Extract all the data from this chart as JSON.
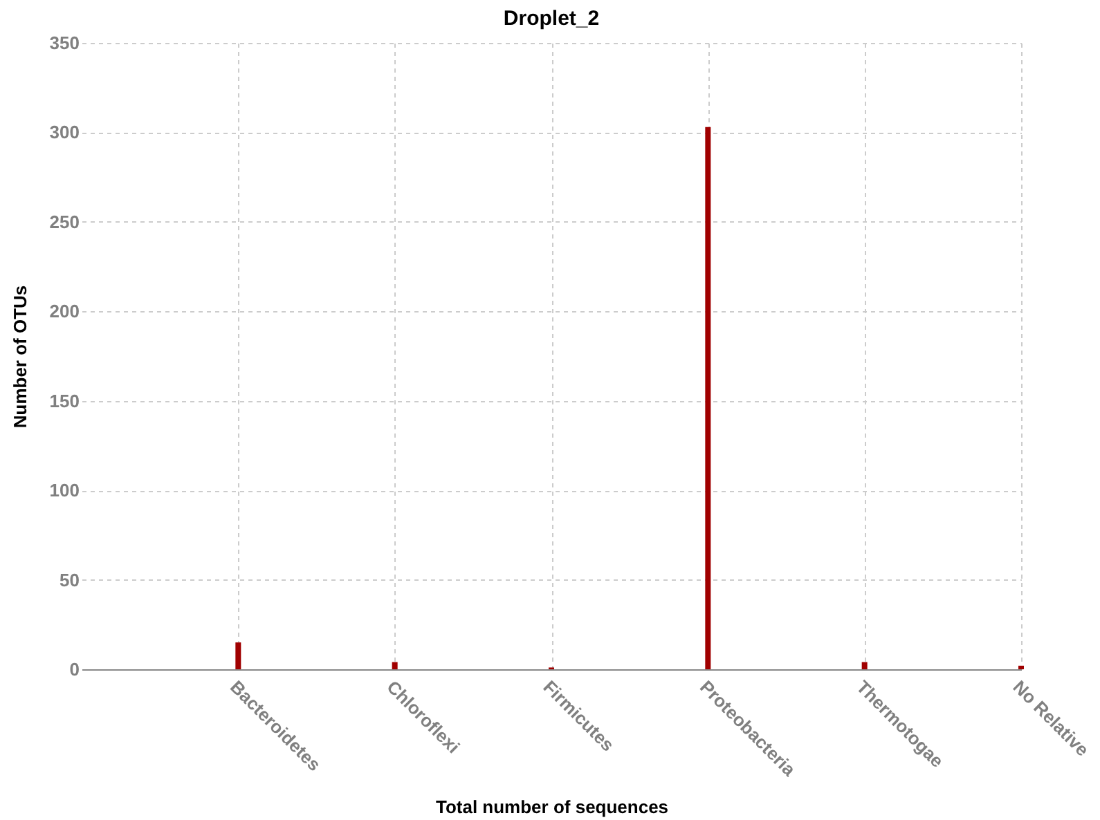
{
  "chart_data": {
    "type": "bar",
    "title": "Droplet_2",
    "xlabel": "Total number of sequences",
    "ylabel": "Number of OTUs",
    "categories": [
      "Bacteroidetes",
      "Chloroflexi",
      "Firmicutes",
      "Proteobacteria",
      "Thermotogae",
      "No Relative"
    ],
    "values": [
      15,
      4,
      1,
      303,
      4,
      2
    ],
    "color": "#a00000",
    "ylim": [
      0,
      350
    ],
    "yticks": [
      0,
      50,
      100,
      150,
      200,
      250,
      300,
      350
    ],
    "grid": true
  }
}
